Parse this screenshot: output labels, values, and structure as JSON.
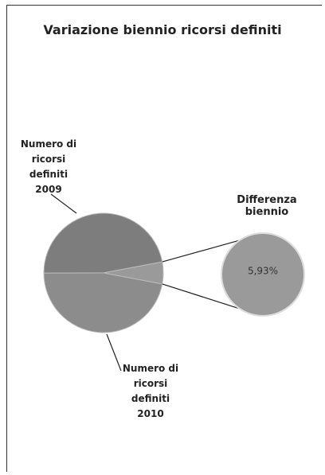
{
  "chart_data": {
    "type": "pie-of-pie",
    "title": "Variazione biennio ricorsi definiti",
    "categories": [
      "Numero di ricorsi definiti 2009",
      "Numero di ricorsi definiti 2010",
      "Differenza biennio"
    ],
    "values": [
      47,
      47.07,
      5.93
    ],
    "value_labels": [
      null,
      null,
      "5,93%"
    ],
    "colors": [
      "#8c8c8c",
      "#7d7d7d",
      "#9a9a9a"
    ]
  }
}
